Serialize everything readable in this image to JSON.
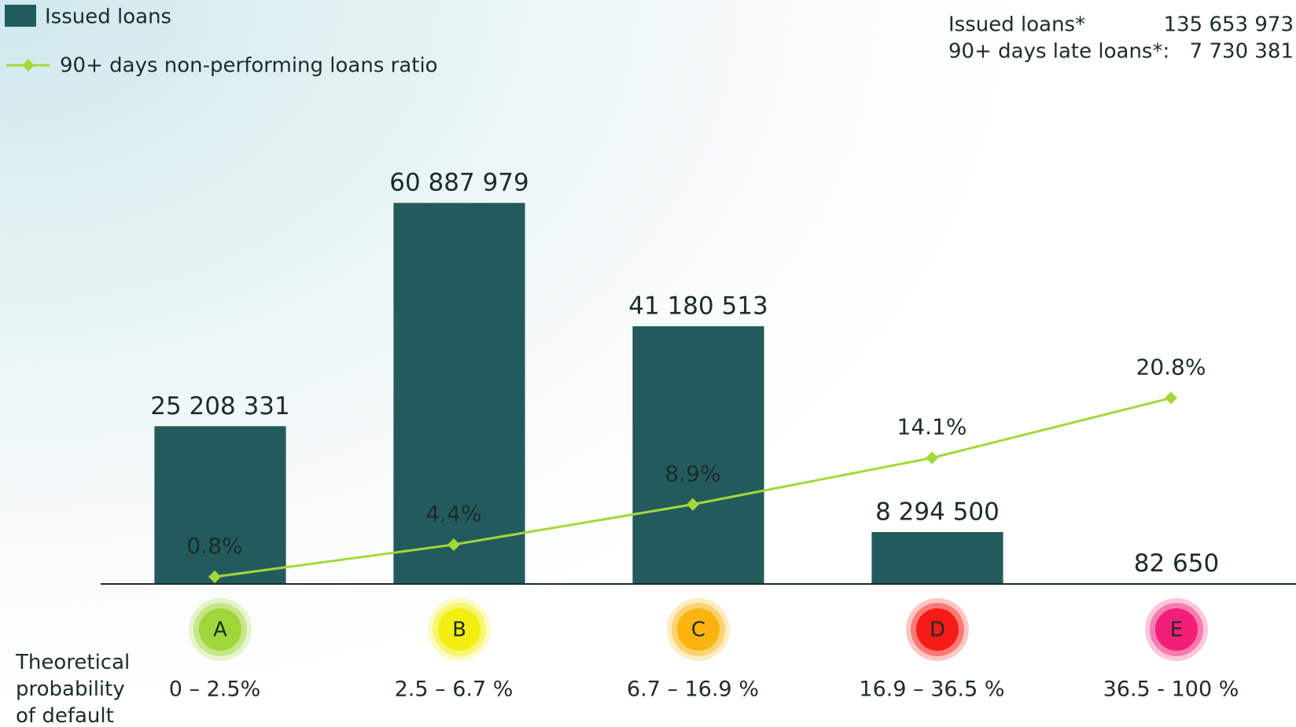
{
  "chart_data": {
    "type": "bar",
    "categories": [
      "A",
      "B",
      "C",
      "D",
      "E"
    ],
    "category_colors": [
      "#9fd63a",
      "#f2ee10",
      "#fbb40f",
      "#f51b16",
      "#f31e78"
    ],
    "ranges": [
      "0 – 2.5%",
      "2.5 – 6.7 %",
      "6.7 – 16.9 %",
      "16.9 – 36.5 %",
      "36.5 - 100 %"
    ],
    "xlabel": "Theoretical probability of default",
    "series": [
      {
        "name": "Issued loans",
        "type": "bar",
        "color": "#235b5c",
        "values": [
          25208331,
          60887979,
          41180513,
          8294500,
          82650
        ],
        "value_labels": [
          "25 208 331",
          "60 887 979",
          "41 180 513",
          "8 294 500",
          "82 650"
        ]
      },
      {
        "name": "90+ days non-performing loans ratio",
        "type": "line",
        "axis": "y2",
        "color": "#a4d83a",
        "values": [
          0.8,
          4.4,
          8.9,
          14.1,
          20.8
        ],
        "value_labels": [
          "0.8%",
          "4.4%",
          "8.9%",
          "14.1%",
          "20.8%"
        ]
      }
    ],
    "ylim": [
      0,
      80000000
    ],
    "y2lim": [
      0,
      56
    ],
    "summary": [
      {
        "label": "Issued loans*",
        "value": "135 653 973"
      },
      {
        "label": "90+ days late loans*:",
        "value": "7 730 381"
      }
    ]
  }
}
